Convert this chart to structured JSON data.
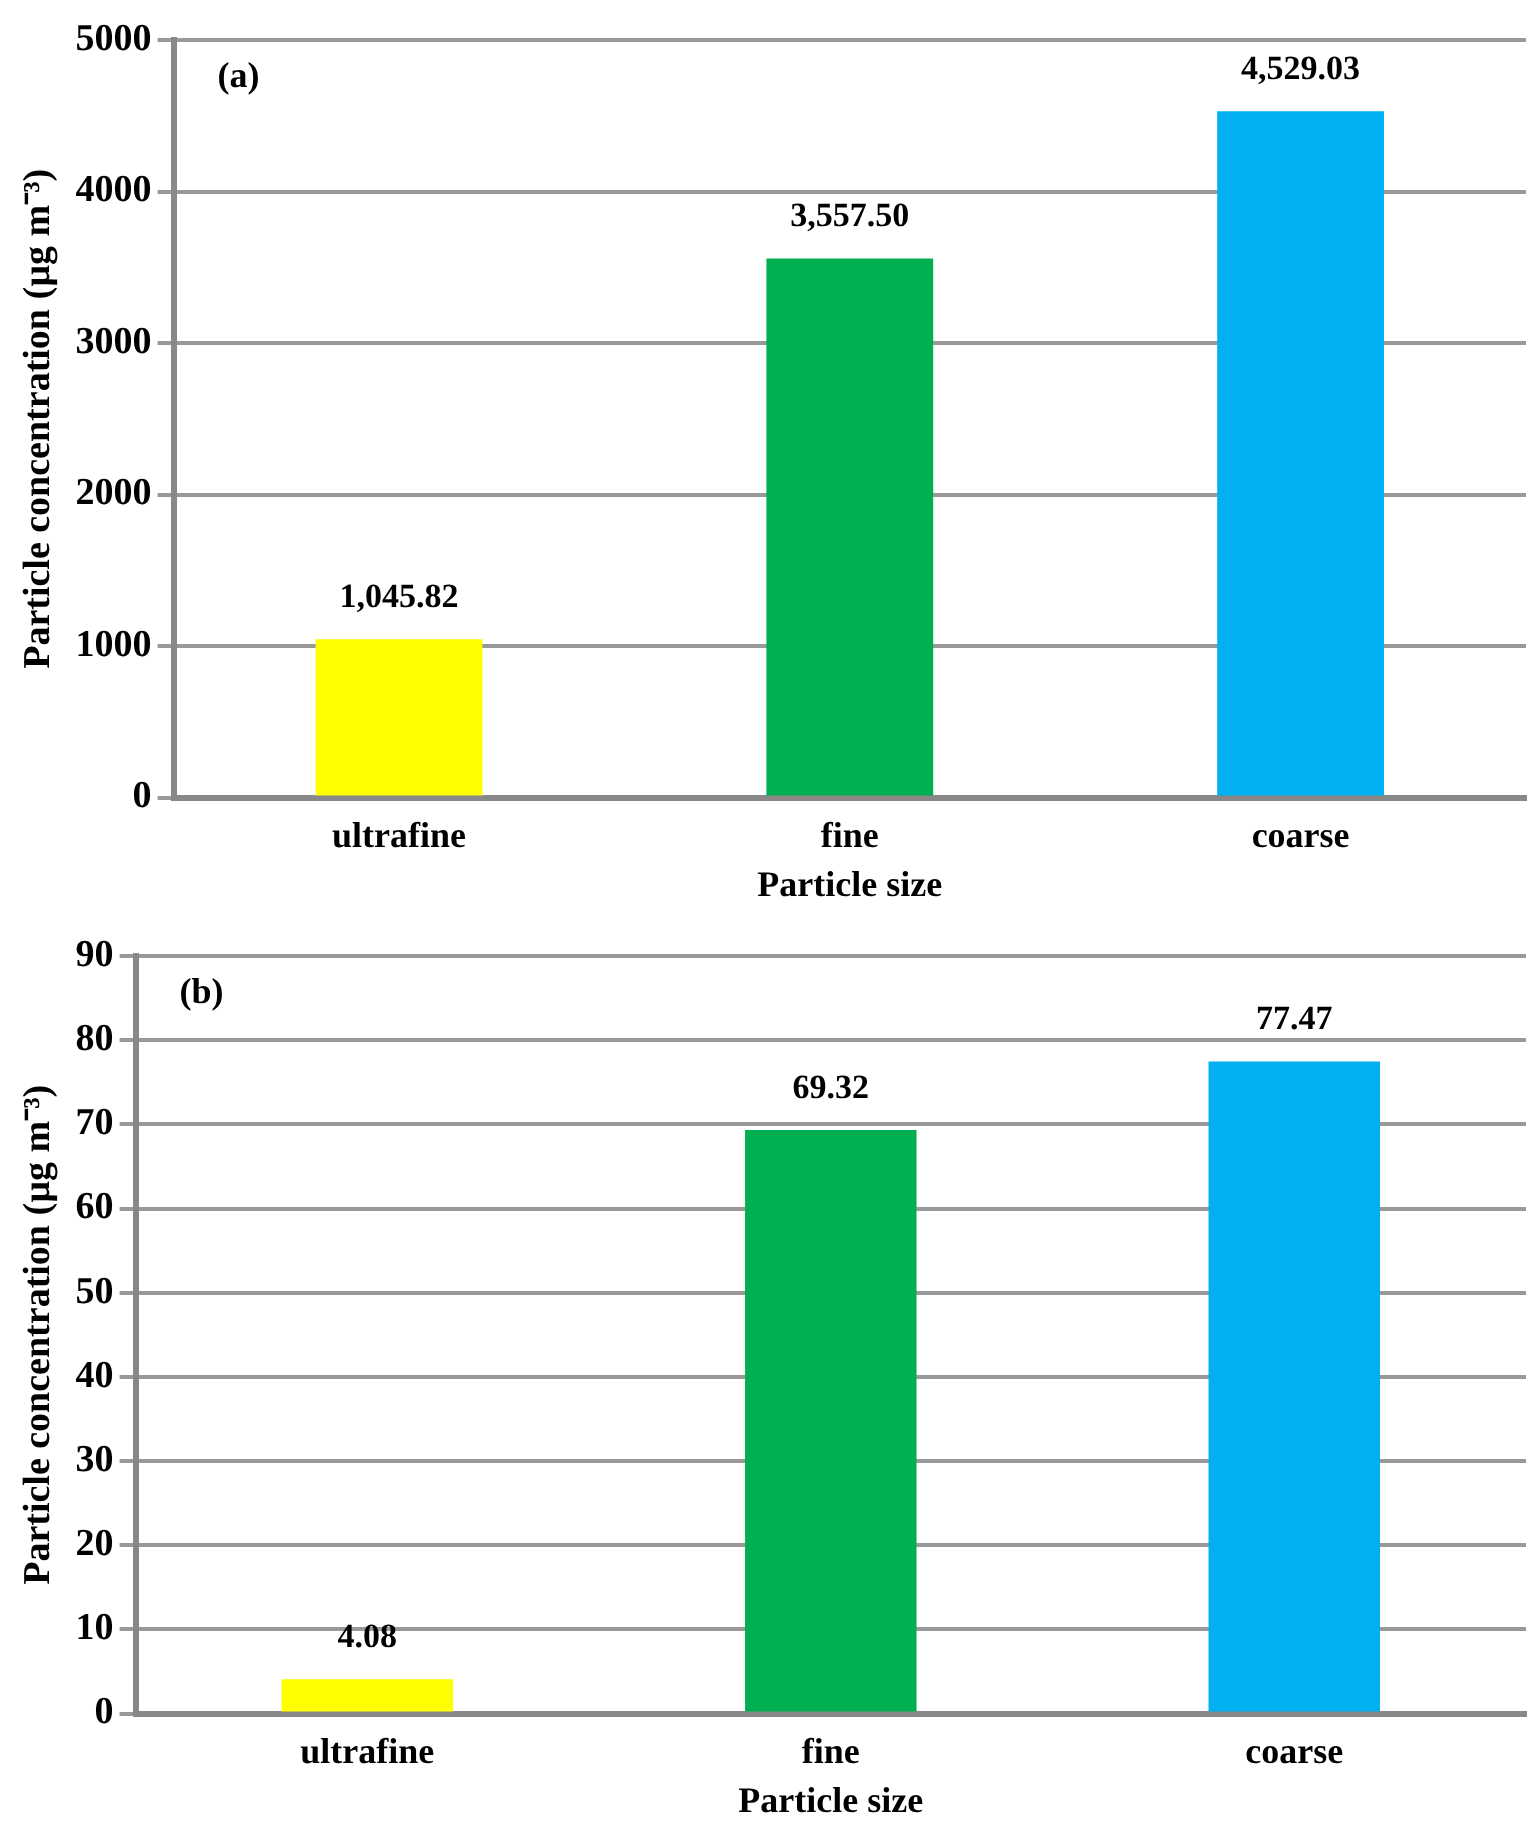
{
  "chart_data": [
    {
      "type": "bar",
      "categories": [
        "ultrafine",
        "fine",
        "coarse"
      ],
      "values": [
        1045.82,
        3557.5,
        4529.03
      ],
      "colors": [
        "#ffff00",
        "#00b050",
        "#00b0f0"
      ],
      "value_labels": [
        "1,045.82",
        "3,557.50",
        "4,529.03"
      ],
      "xlabel": "Particle size",
      "ylabel": "Particle concentration (µg m⁻³)",
      "ylim": [
        0,
        5000
      ],
      "yticks": [
        0,
        1000,
        2000,
        3000,
        4000,
        5000
      ],
      "grid": "y",
      "annotations": [
        "(a)"
      ]
    },
    {
      "type": "bar",
      "categories": [
        "ultrafine",
        "fine",
        "coarse"
      ],
      "values": [
        4.08,
        69.32,
        77.47
      ],
      "colors": [
        "#ffff00",
        "#00b050",
        "#00b0f0"
      ],
      "data_labels": true,
      "xlabel": "Particle size",
      "ylabel": "Particle concentration (µg m⁻³)",
      "ylim": [
        0,
        90
      ],
      "yticks": [
        0,
        10,
        20,
        30,
        40,
        50,
        60,
        70,
        80,
        90
      ],
      "grid": "y",
      "annotations": [
        "(b)"
      ]
    }
  ]
}
